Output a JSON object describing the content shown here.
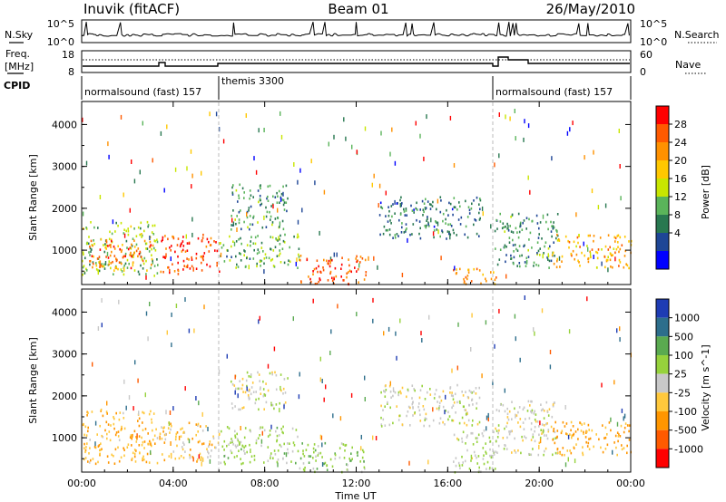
{
  "header": {
    "station": "Inuvik (fitACF)",
    "beam": "Beam 01",
    "date": "26/May/2010"
  },
  "sidebar": {
    "nsky_label": "N.Sky",
    "freq_label_1": "Freq.",
    "freq_label_2": "[MHz]",
    "cpid_label": "CPID",
    "nsearch_label": "N.Search",
    "nave_label": "Nave"
  },
  "nsky_panel": {
    "ticks_left": [
      "10^5",
      "10^0"
    ],
    "ticks_right": [
      "10^5",
      "10^0"
    ]
  },
  "freq_panel": {
    "ticks_left": [
      "18",
      "8"
    ],
    "ticks_right": [
      "60",
      "0"
    ]
  },
  "cpid_segments": [
    {
      "label": "normalsound (fast) 157",
      "start_hr": 0,
      "end_hr": 6
    },
    {
      "label": "themis 3300",
      "start_hr": 6,
      "end_hr": 18
    },
    {
      "label": "normalsound (fast) 157",
      "start_hr": 18,
      "end_hr": 24
    }
  ],
  "axes": {
    "xlabel": "Time UT",
    "xticks": [
      "00:00",
      "04:00",
      "08:00",
      "12:00",
      "16:00",
      "20:00",
      "00:00"
    ],
    "ylabel": "Slant Range [km]",
    "yticks": [
      "1000",
      "2000",
      "3000",
      "4000"
    ]
  },
  "power_colorbar": {
    "label": "Power [dB]",
    "ticks": [
      "28",
      "24",
      "20",
      "16",
      "12",
      "8",
      "4"
    ],
    "colors": [
      "#ff0000",
      "#ff5a00",
      "#ff9100",
      "#ffc800",
      "#c8e600",
      "#5ab45a",
      "#287850",
      "#1e4696",
      "#0000ff"
    ]
  },
  "velocity_colorbar": {
    "label": "Velocity [m s^-1]",
    "ticks": [
      "1000",
      "500",
      "100",
      "25",
      "-25",
      "-100",
      "-500",
      "-1000"
    ],
    "colors": [
      "#1e3cb4",
      "#2d6e8c",
      "#5aaa50",
      "#96d23c",
      "#c8c8c8",
      "#ffc83c",
      "#ff9600",
      "#ff5a00",
      "#ff0000"
    ]
  },
  "chart_data": [
    {
      "type": "heatmap",
      "title": "",
      "xlabel": "Time UT",
      "ylabel": "Slant Range [km]",
      "xlim": [
        0,
        24
      ],
      "ylim": [
        180,
        4550
      ],
      "colorbar": "Power [dB]",
      "colorbar_range": [
        0,
        32
      ],
      "scatter_regions": [
        {
          "t0": 0,
          "t1": 3.3,
          "r0": 400,
          "r1": 1700,
          "value": 14
        },
        {
          "t0": 0.3,
          "t1": 3.2,
          "r0": 600,
          "r1": 1300,
          "value": 26
        },
        {
          "t0": 3.4,
          "t1": 6.0,
          "r0": 450,
          "r1": 1400,
          "value": 28
        },
        {
          "t0": 6.0,
          "t1": 9.5,
          "r0": 600,
          "r1": 1400,
          "value": 12
        },
        {
          "t0": 6.5,
          "t1": 9.0,
          "r0": 1500,
          "r1": 2600,
          "value": 10
        },
        {
          "t0": 9.5,
          "t1": 12.4,
          "r0": 200,
          "r1": 900,
          "value": 27
        },
        {
          "t0": 13.0,
          "t1": 17.4,
          "r0": 1300,
          "r1": 2300,
          "value": 8
        },
        {
          "t0": 16.2,
          "t1": 18.2,
          "r0": 200,
          "r1": 600,
          "value": 24
        },
        {
          "t0": 18.0,
          "t1": 20.8,
          "r0": 600,
          "r1": 1900,
          "value": 10
        },
        {
          "t0": 20.5,
          "t1": 24.0,
          "r0": 600,
          "r1": 1400,
          "value": 22
        }
      ]
    },
    {
      "type": "heatmap",
      "title": "",
      "xlabel": "Time UT",
      "ylabel": "Slant Range [km]",
      "xlim": [
        0,
        24
      ],
      "ylim": [
        180,
        4550
      ],
      "colorbar": "Velocity [m s^-1]",
      "colorbar_range": [
        -1000,
        1000
      ],
      "scatter_regions": [
        {
          "t0": 0,
          "t1": 3.3,
          "r0": 400,
          "r1": 1700,
          "value": -300
        },
        {
          "t0": 3.4,
          "t1": 6.0,
          "r0": 450,
          "r1": 1400,
          "value": -200
        },
        {
          "t0": 6.0,
          "t1": 9.5,
          "r0": 400,
          "r1": 1300,
          "value": 150
        },
        {
          "t0": 6.5,
          "t1": 9.0,
          "r0": 1700,
          "r1": 2600,
          "value": 0
        },
        {
          "t0": 9.5,
          "t1": 12.4,
          "r0": 200,
          "r1": 900,
          "value": 200
        },
        {
          "t0": 13.0,
          "t1": 17.4,
          "r0": 1300,
          "r1": 2300,
          "value": 0
        },
        {
          "t0": 16.2,
          "t1": 18.2,
          "r0": 200,
          "r1": 1200,
          "value": 80
        },
        {
          "t0": 18.0,
          "t1": 20.8,
          "r0": 600,
          "r1": 1900,
          "value": 20
        },
        {
          "t0": 20.5,
          "t1": 24.0,
          "r0": 600,
          "r1": 1400,
          "value": -350
        }
      ]
    }
  ]
}
